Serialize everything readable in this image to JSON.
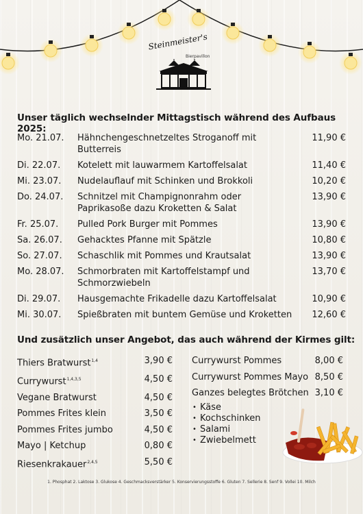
{
  "header": {
    "logo_name": "Steinmeister's",
    "logo_sub": "Bierpavillon"
  },
  "daily": {
    "title": "Unser täglich wechselnder Mittagstisch während des Aufbaus 2025:",
    "items": [
      {
        "day": "Mo. 21.07.",
        "dish": "Hähnchengeschnetzeltes Stroganoff mit Butterreis",
        "price": "11,90 €"
      },
      {
        "day": "Di. 22.07.",
        "dish": "Kotelett mit lauwarmem Kartoffelsalat",
        "price": "11,40 €"
      },
      {
        "day": "Mi. 23.07.",
        "dish": "Nudelauflauf mit Schinken und Brokkoli",
        "price": "10,20 €"
      },
      {
        "day": "Do. 24.07.",
        "dish": "Schnitzel mit Champignonrahm oder Paprikasoße dazu Kroketten & Salat",
        "price": "13,90 €"
      },
      {
        "day": "Fr. 25.07.",
        "dish": "Pulled Pork Burger mit Pommes",
        "price": "13,90 €"
      },
      {
        "day": "Sa. 26.07.",
        "dish": "Gehacktes Pfanne mit Spätzle",
        "price": "10,80 €"
      },
      {
        "day": "So. 27.07.",
        "dish": "Schaschlik mit Pommes und Krautsalat",
        "price": "13,90 €"
      },
      {
        "day": "Mo. 28.07.",
        "dish": "Schmorbraten mit Kartoffelstampf und Schmorzwiebeln",
        "price": "13,70 €"
      },
      {
        "day": "Di. 29.07.",
        "dish": "Hausgemachte Frikadelle dazu Kartoffelsalat",
        "price": "10,90 €"
      },
      {
        "day": "Mi. 30.07.",
        "dish": "Spießbraten mit buntem Gemüse und Kroketten",
        "price": "12,60 €"
      }
    ]
  },
  "extra": {
    "title": "Und zusätzlich unser Angebot, das auch während der Kirmes gilt:",
    "left": [
      {
        "name": "Thiers Bratwurst",
        "allergens": "1,4",
        "price": "3,90 €"
      },
      {
        "name": "Currywurst",
        "allergens": "1,4,3,5",
        "price": "4,50 €"
      },
      {
        "name": "Vegane Bratwurst",
        "allergens": "",
        "price": "4,50 €"
      },
      {
        "name": "Pommes Frites klein",
        "allergens": "",
        "price": "3,50 €"
      },
      {
        "name": "Pommes Frites jumbo",
        "allergens": "",
        "price": "4,50 €"
      },
      {
        "name": "Mayo | Ketchup",
        "allergens": "",
        "price": "0,80 €"
      },
      {
        "name": "Riesenkrakauer",
        "allergens": "2,4,5",
        "price": "5,50 €"
      }
    ],
    "right": [
      {
        "name": "Currywurst Pommes",
        "price": "8,00 €"
      },
      {
        "name": "Currywurst Pommes Mayo",
        "price": "8,50 €"
      },
      {
        "name": "Ganzes belegtes Brötchen",
        "price": "3,10 €"
      }
    ],
    "bullet_symbol": "•",
    "roll_options": [
      "Käse",
      "Kochschinken",
      "Salami",
      "Zwiebelmett"
    ]
  },
  "footnote": "1. Phosphat 2. Laktose 3. Glukose 4. Geschmacksverstärker 5. Konservierungsstoffe 6. Gluten 7. Sellerie 8. Senf 9. Vollei 10. Milch"
}
